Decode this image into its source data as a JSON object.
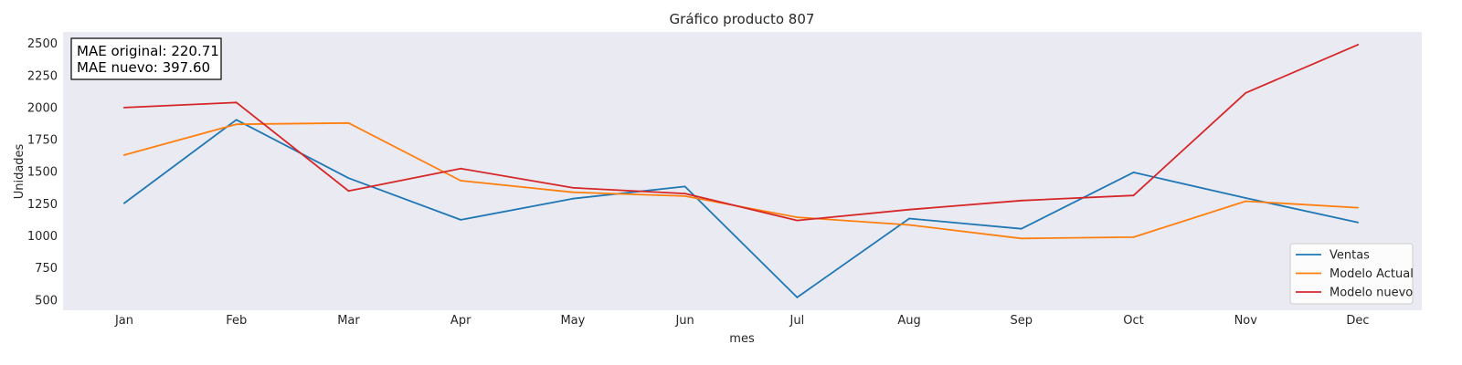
{
  "chart_data": {
    "type": "line",
    "title": "Gráfico producto 807",
    "xlabel": "mes",
    "ylabel": "Unidades",
    "categories": [
      "Jan",
      "Feb",
      "Mar",
      "Apr",
      "May",
      "Jun",
      "Jul",
      "Aug",
      "Sep",
      "Oct",
      "Nov",
      "Dec"
    ],
    "yticks": [
      500,
      750,
      1000,
      1250,
      1500,
      1750,
      2000,
      2250,
      2500
    ],
    "ylim": [
      420,
      2590
    ],
    "grid": false,
    "background": "#eaeaf2",
    "legend_position": "lower-right",
    "annotation": {
      "line1": "MAE original: 220.71",
      "line2": "MAE nuevo: 397.60"
    },
    "series": [
      {
        "name": "Ventas",
        "color": "#1f77b4",
        "values": [
          1255,
          1905,
          1450,
          1125,
          1290,
          1385,
          520,
          1135,
          1055,
          1495,
          1295,
          1105
        ]
      },
      {
        "name": "Modelo Actual",
        "color": "#ff7f0e",
        "values": [
          1630,
          1870,
          1880,
          1430,
          1340,
          1310,
          1145,
          1085,
          980,
          990,
          1270,
          1220
        ]
      },
      {
        "name": "Modelo nuevo",
        "color": "#d62728",
        "values": [
          2000,
          2040,
          1350,
          1525,
          1375,
          1330,
          1120,
          1205,
          1275,
          1315,
          2115,
          2490
        ]
      }
    ]
  }
}
